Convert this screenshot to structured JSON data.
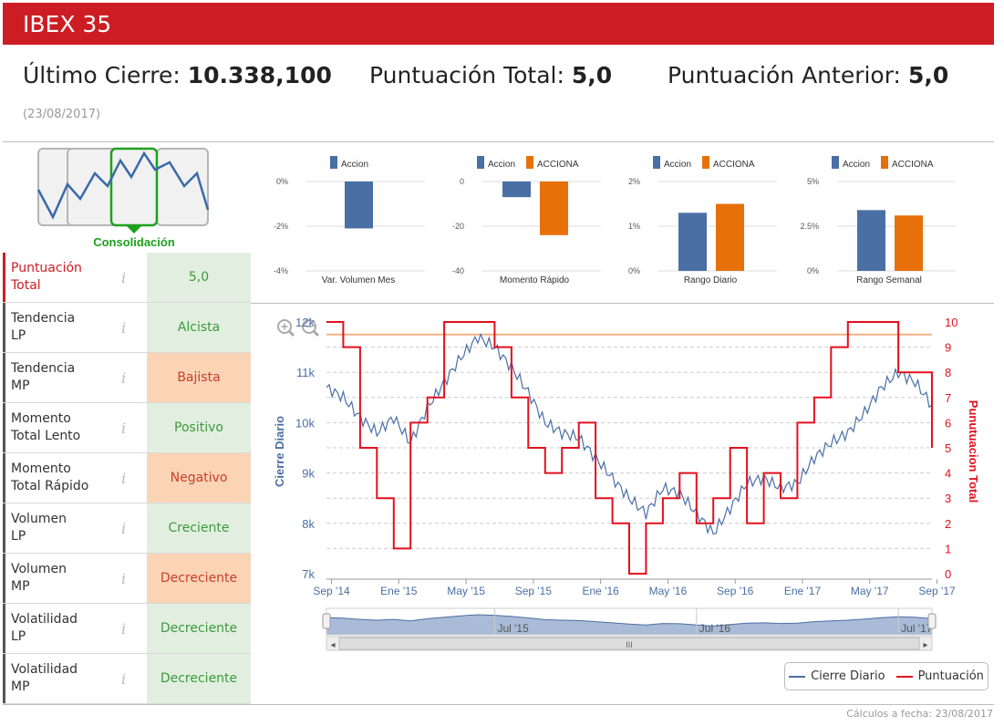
{
  "header": {
    "title": "IBEX 35"
  },
  "summary": {
    "last_close_label": "Último Cierre:",
    "last_close_value": "10.338,100",
    "total_score_label": "Puntuación Total:",
    "total_score_value": "5,0",
    "prev_score_label": "Puntuación Anterior:",
    "prev_score_value": "5,0",
    "date": "(23/08/2017)"
  },
  "pattern": {
    "label": "Consolidación"
  },
  "scores": [
    {
      "label1": "Puntuación",
      "label2": "Total",
      "value": "5,0",
      "state": "green",
      "main": true
    },
    {
      "label1": "Tendencia",
      "label2": "LP",
      "value": "Alcista",
      "state": "green"
    },
    {
      "label1": "Tendencia",
      "label2": "MP",
      "value": "Bajista",
      "state": "orange"
    },
    {
      "label1": "Momento",
      "label2": "Total Lento",
      "value": "Positivo",
      "state": "green"
    },
    {
      "label1": "Momento",
      "label2": "Total Rápido",
      "value": "Negativo",
      "state": "orange"
    },
    {
      "label1": "Volumen",
      "label2": "LP",
      "value": "Creciente",
      "state": "green"
    },
    {
      "label1": "Volumen",
      "label2": "MP",
      "value": "Decreciente",
      "state": "orange"
    },
    {
      "label1": "Volatilidad",
      "label2": "LP",
      "value": "Decreciente",
      "state": "green"
    },
    {
      "label1": "Volatilidad",
      "label2": "MP",
      "value": "Decreciente",
      "state": "green"
    }
  ],
  "info_glyph": "i",
  "colors": {
    "accent": "#cc1d24",
    "series_a": "#4a6fa5",
    "series_b": "#e8700a",
    "score_line": "#e3101e",
    "close_line": "#4a6fa5",
    "ref_line": "#f4b183"
  },
  "chart_data": [
    {
      "type": "bar",
      "title": "Var. Volumen Mes",
      "series": [
        {
          "name": "Accion",
          "values": [
            -2.1
          ]
        }
      ],
      "ylim": [
        -4,
        0
      ],
      "yticks": [
        "0%",
        "-2%",
        "-4%"
      ]
    },
    {
      "type": "bar",
      "title": "Momento Rápido",
      "series": [
        {
          "name": "Accion",
          "values": [
            -7
          ]
        },
        {
          "name": "ACCIONA",
          "values": [
            -24
          ]
        }
      ],
      "ylim": [
        -40,
        0
      ],
      "yticks": [
        "0",
        "-20",
        "-40"
      ]
    },
    {
      "type": "bar",
      "title": "Rango Diario",
      "series": [
        {
          "name": "Accion",
          "values": [
            1.3
          ]
        },
        {
          "name": "ACCIONA",
          "values": [
            1.5
          ]
        }
      ],
      "ylim": [
        0,
        2
      ],
      "yticks": [
        "2%",
        "1%",
        "0%"
      ]
    },
    {
      "type": "bar",
      "title": "Rango Semanal",
      "series": [
        {
          "name": "Accion",
          "values": [
            3.4
          ]
        },
        {
          "name": "ACCIONA",
          "values": [
            3.1
          ]
        }
      ],
      "ylim": [
        0,
        5
      ],
      "yticks": [
        "5%",
        "2.5%",
        "0%"
      ]
    },
    {
      "type": "line",
      "title": "",
      "ylabel": "Cierre Diario",
      "y2label": "Punutuacion Total",
      "ylim": [
        7000,
        12000
      ],
      "y2lim": [
        0,
        10
      ],
      "yticks": [
        "12k",
        "11k",
        "10k",
        "9k",
        "8k",
        "7k"
      ],
      "y2ticks": [
        "10",
        "9",
        "8",
        "7",
        "6",
        "5",
        "4",
        "3",
        "2",
        "1",
        "0"
      ],
      "xticks": [
        "Sep '14",
        "Ene '15",
        "May '15",
        "Sep '15",
        "Ene '16",
        "May '16",
        "Sep '16",
        "Ene '17",
        "May '17",
        "Sep '17"
      ],
      "xlim": [
        0,
        36
      ],
      "reference_line": 9.5,
      "navigator_labels": [
        "Jul '15",
        "Jul '16",
        "Jul '17"
      ],
      "navigator_handle": "III",
      "series": [
        {
          "name": "Cierre Diario",
          "x": [
            0,
            1,
            2,
            3,
            4,
            5,
            6,
            7,
            8,
            9,
            10,
            11,
            12,
            13,
            14,
            15,
            16,
            17,
            18,
            19,
            20,
            21,
            22,
            23,
            24,
            25,
            26,
            27,
            28,
            29,
            30,
            31,
            32,
            33,
            34,
            35,
            36
          ],
          "values": [
            10700,
            10500,
            10100,
            9800,
            10100,
            9600,
            10300,
            10800,
            11300,
            11700,
            11500,
            11100,
            10600,
            10000,
            9800,
            9700,
            9300,
            8900,
            8500,
            8200,
            8700,
            8600,
            8200,
            7800,
            8300,
            8800,
            8900,
            8700,
            8800,
            9300,
            9600,
            9800,
            10200,
            10700,
            11000,
            10800,
            10350
          ]
        },
        {
          "name": "Puntuación",
          "x": [
            0,
            1,
            2,
            3,
            4,
            5,
            6,
            7,
            8,
            9,
            10,
            11,
            12,
            13,
            14,
            15,
            16,
            17,
            18,
            19,
            20,
            21,
            22,
            23,
            24,
            25,
            26,
            27,
            28,
            29,
            30,
            31,
            32,
            33,
            34,
            35,
            36
          ],
          "values": [
            10,
            9,
            5,
            3,
            1,
            6,
            7,
            10,
            10,
            10,
            9,
            7,
            5,
            4,
            5,
            6,
            3,
            2,
            0,
            2,
            3,
            4,
            2,
            3,
            5,
            2,
            4,
            3,
            6,
            7,
            9,
            10,
            10,
            10,
            8,
            8,
            5
          ]
        }
      ]
    }
  ],
  "legend": {
    "close": "Cierre Diario",
    "score": "Puntuación"
  },
  "footer": "Cálculos a fecha: 23/08/2017"
}
